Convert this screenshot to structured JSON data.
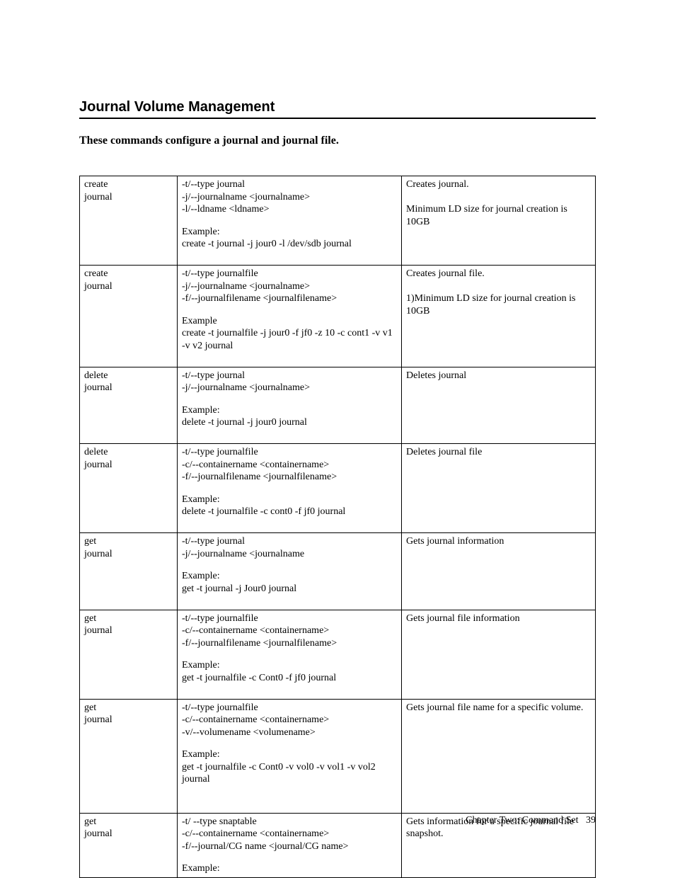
{
  "heading": "Journal Volume Management",
  "subtitle": "These commands configure a journal and journal file.",
  "footer": {
    "text": "Chapter Two: Command Set",
    "page": "39"
  },
  "rows": [
    {
      "cmd_l1": "create",
      "cmd_l2": "journal",
      "opt_l1": "-t/--type journal",
      "opt_l2": "-j/--journalname <journalname>",
      "opt_l3": "-l/--ldname <ldname>",
      "example_label": "Example:",
      "example": "create -t journal -j jour0 -l /dev/sdb journal",
      "desc_l1": "Creates journal.",
      "desc_l2": "Minimum LD size for journal creation is 10GB"
    },
    {
      "cmd_l1": "create",
      "cmd_l2": "journal",
      "opt_l1": "-t/--type journalfile",
      "opt_l2": "-j/--journalname <journalname>",
      "opt_l3": "-f/--journalfilename <journalfilename>",
      "example_label": "Example",
      "example": "create -t journalfile -j jour0 -f jf0 -z 10 -c cont1 -v v1 -v v2 journal",
      "desc_l1": "Creates journal file.",
      "desc_l2": "1)Minimum LD size for journal creation is 10GB"
    },
    {
      "cmd_l1": "delete",
      "cmd_l2": "journal",
      "opt_l1": "-t/--type journal",
      "opt_l2": "-j/--journalname <journalname>",
      "example_label": "Example:",
      "example": "delete -t journal -j jour0 journal",
      "desc_l1": "Deletes journal"
    },
    {
      "cmd_l1": "delete",
      "cmd_l2": "journal",
      "opt_l1": "-t/--type journalfile",
      "opt_l2": "-c/--containername <containername>",
      "opt_l3": "-f/--journalfilename <journalfilename>",
      "example_label": "Example:",
      "example": "delete -t journalfile -c cont0 -f jf0 journal",
      "desc_l1": "Deletes journal  file"
    },
    {
      "cmd_l1": "get",
      "cmd_l2": "journal",
      "opt_l1": "-t/--type journal",
      "opt_l2": "-j/--journalname <journalname",
      "example_label": "Example:",
      "example": "get -t journal -j Jour0 journal",
      "desc_l1": "Gets journal information"
    },
    {
      "cmd_l1": "get",
      "cmd_l2": "journal",
      "opt_l1": "-t/--type journalfile",
      "opt_l2": "-c/--containername <containername>",
      "opt_l3": "-f/--journalfilename <journalfilename>",
      "example_label": "Example:",
      "example": "get -t journalfile -c Cont0 -f jf0 journal",
      "desc_l1": "Gets journal file information"
    },
    {
      "cmd_l1": "get",
      "cmd_l2": "journal",
      "opt_l1": "-t/--type journalfile",
      "opt_l2": "-c/--containername <containername>",
      "opt_l3": "-v/--volumename <volumename>",
      "example_label": "Example:",
      "example": "get -t journalfile -c Cont0 -v vol0 -v vol1 -v vol2 journal",
      "desc_l1": "Gets journal file name for a specific volume.",
      "extra_blank": true
    },
    {
      "cmd_l1": "get",
      "cmd_l2": "journal",
      "opt_l1": "-t/ --type snaptable",
      "opt_l2": "-c/--containername <containername>",
      "opt_l3": "-f/--journal/CG name <journal/CG name>",
      "example_label": "Example:",
      "desc_l1": "Gets information for a specific journal file snapshot.",
      "no_example_text": true
    }
  ]
}
